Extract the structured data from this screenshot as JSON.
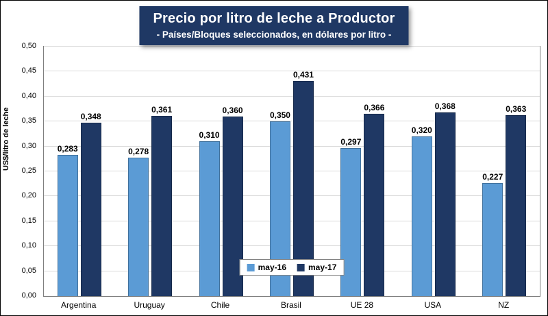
{
  "title": "Precio por litro de leche a Productor",
  "subtitle": "- Países/Bloques seleccionados, en dólares por litro -",
  "y_axis_title": "US$/litro de leche",
  "colors": {
    "series_may16": "#5B9BD5",
    "series_may17": "#1F3864",
    "title_background": "#1F3864",
    "gridline": "#D9D9D9"
  },
  "chart_data": {
    "type": "bar",
    "title": "Precio por litro de leche a Productor",
    "subtitle": "- Países/Bloques seleccionados, en dólares por litro -",
    "ylabel": "US$/litro de leche",
    "xlabel": "",
    "categories": [
      "Argentina",
      "Uruguay",
      "Chile",
      "Brasil",
      "UE 28",
      "USA",
      "NZ"
    ],
    "series": [
      {
        "name": "may-16",
        "color": "#5B9BD5",
        "values": [
          0.283,
          0.278,
          0.31,
          0.35,
          0.297,
          0.32,
          0.227
        ],
        "labels": [
          "0,283",
          "0,278",
          "0,310",
          "0,350",
          "0,297",
          "0,320",
          "0,227"
        ]
      },
      {
        "name": "may-17",
        "color": "#1F3864",
        "values": [
          0.348,
          0.361,
          0.36,
          0.431,
          0.366,
          0.368,
          0.363
        ],
        "labels": [
          "0,348",
          "0,361",
          "0,360",
          "0,431",
          "0,366",
          "0,368",
          "0,363"
        ]
      }
    ],
    "ylim": [
      0,
      0.5
    ],
    "ytick_step": 0.05,
    "ytick_labels": [
      "0,00",
      "0,05",
      "0,10",
      "0,15",
      "0,20",
      "0,25",
      "0,30",
      "0,35",
      "0,40",
      "0,45",
      "0,50"
    ],
    "grid": true,
    "legend_position": "inside-bottom-center"
  }
}
